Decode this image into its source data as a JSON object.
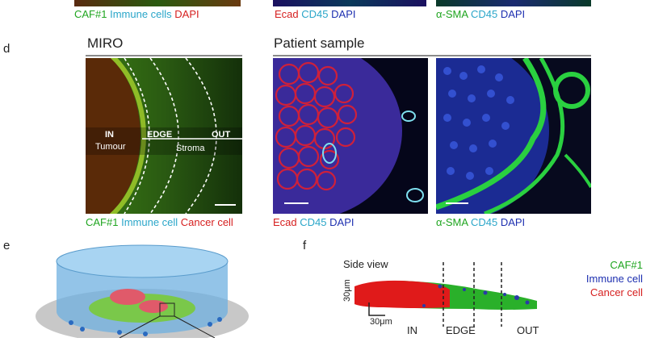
{
  "top_row": {
    "label1": {
      "a": "CAF#1",
      "b": "Immune cells",
      "c": "DAPI"
    },
    "label2": {
      "a": "Ecad",
      "b": "CD45",
      "c": "DAPI"
    },
    "label3": {
      "a": "α-SMA",
      "b": "CD45",
      "c": "DAPI"
    }
  },
  "panel_d": {
    "letter": "d",
    "miro_title": "MIRO",
    "patient_title": "Patient sample",
    "zones": {
      "in": "IN",
      "edge": "EDGE",
      "out": "OUT",
      "tumour": "Tumour",
      "stroma": "Stroma"
    },
    "caption_miro": {
      "a": "CAF#1",
      "b": "Immune cell",
      "c": "Cancer cell"
    },
    "caption_patient1": {
      "a": "Ecad",
      "b": "CD45",
      "c": "DAPI"
    },
    "caption_patient2": {
      "a": "α-SMA",
      "b": "CD45",
      "c": "DAPI"
    }
  },
  "panel_e": {
    "letter": "e"
  },
  "panel_f": {
    "letter": "f",
    "side_view": "Side view",
    "legend": {
      "caf": "CAF#1",
      "immune": "Immune cell",
      "cancer": "Cancer cell"
    },
    "scale_v": "30μm",
    "scale_h": "30μm",
    "zones": {
      "in": "IN",
      "edge": "EDGE",
      "out": "OUT"
    }
  },
  "colors": {
    "green": "#1fa51f",
    "cyan": "#2aa6c9",
    "red": "#d61f1f",
    "blue": "#1d2fb0"
  }
}
